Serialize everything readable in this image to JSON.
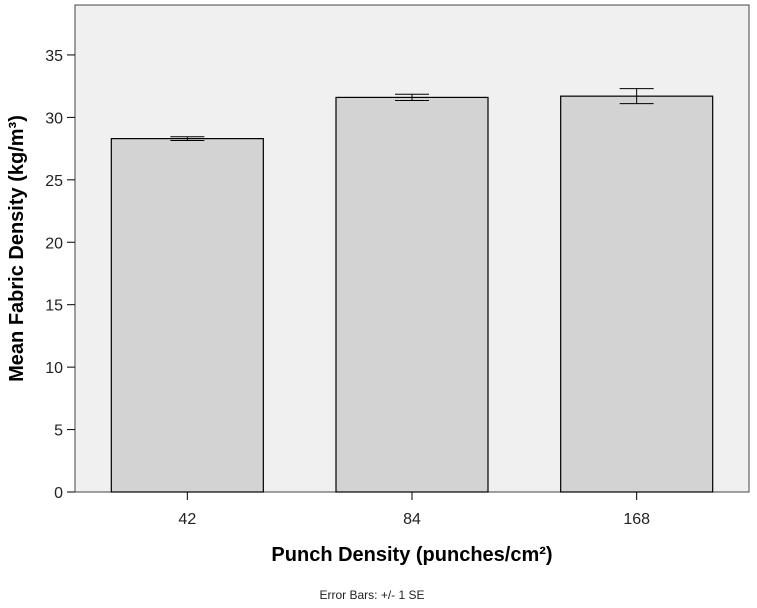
{
  "chart_data": {
    "type": "bar",
    "categories": [
      "42",
      "84",
      "168"
    ],
    "values": [
      28.3,
      31.6,
      31.7
    ],
    "error_bars": {
      "label": "Error Bars: +/- 1 SE",
      "se": [
        0.15,
        0.25,
        0.6
      ]
    },
    "xlabel": "Punch Density (punches/cm²)",
    "ylabel": "Mean Fabric Density (kg/m³)",
    "ylim": [
      0,
      39
    ],
    "yticks": [
      0,
      5,
      10,
      15,
      20,
      25,
      30,
      35
    ],
    "grid": false,
    "colors": {
      "plot_background": "#f0f0f0",
      "bar_fill": "#d3d3d3",
      "bar_stroke": "#000000"
    }
  }
}
